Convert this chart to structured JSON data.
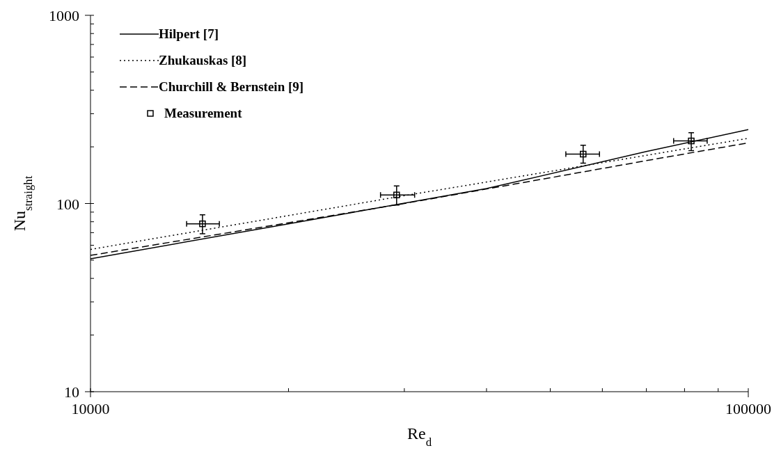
{
  "chart_data": {
    "type": "line",
    "xlabel": "Re$_{d}$",
    "ylabel": "Nu$_{straight}$",
    "log": "xy",
    "legend": "top left",
    "xlim": [
      10000,
      100000
    ],
    "ylim": [
      10,
      1000
    ],
    "xticks": [
      10000,
      {
        "value": 20000,
        "label": null
      },
      {
        "value": 30000,
        "label": null
      },
      {
        "value": 40000,
        "label": null
      },
      {
        "value": 50000,
        "label": null
      },
      {
        "value": 60000,
        "label": null
      },
      {
        "value": 70000,
        "label": null
      },
      {
        "value": 80000,
        "label": null
      },
      {
        "value": 90000,
        "label": null
      },
      100000
    ],
    "yticks": [
      10,
      {
        "value": 20,
        "label": null
      },
      {
        "value": 30,
        "label": null
      },
      {
        "value": 40,
        "label": null
      },
      {
        "value": 50,
        "label": null
      },
      {
        "value": 60,
        "label": null
      },
      {
        "value": 70,
        "label": null
      },
      {
        "value": 80,
        "label": null
      },
      {
        "value": 90,
        "label": null
      },
      100,
      {
        "value": 200,
        "label": null
      },
      {
        "value": 300,
        "label": null
      },
      {
        "value": 400,
        "label": null
      },
      {
        "value": 500,
        "label": null
      },
      {
        "value": 600,
        "label": null
      },
      {
        "value": 700,
        "label": null
      },
      {
        "value": 800,
        "label": null
      },
      {
        "value": 900,
        "label": null
      },
      1000
    ],
    "series": [
      {
        "name": "Hilpert [7]",
        "line_style": "solid",
        "color": "#000000",
        "x": [
          10000,
          20000,
          40000,
          70000,
          100000
        ],
        "values": [
          50.8,
          78,
          120,
          189,
          247
        ]
      },
      {
        "name": "Zhukauskas [8]",
        "line_style": "dotted",
        "color": "#000000",
        "x": [
          10000,
          30000,
          100000
        ],
        "values": [
          57,
          110,
          222
        ]
      },
      {
        "name": "Churchill & Bernstein [9]",
        "line_style": "dashed",
        "color": "#000000",
        "x": [
          10000,
          20000,
          30000,
          50000,
          70000,
          100000
        ],
        "values": [
          53,
          79,
          100,
          137,
          169,
          210
        ]
      },
      {
        "name": "Measurement",
        "type": "scatter",
        "marker": "square",
        "color": "#000000",
        "x": [
          14800,
          29200,
          56100,
          81900
        ],
        "values": [
          78,
          111,
          183,
          215
        ],
        "errors": [
          [
            69,
            87
          ],
          [
            98,
            124
          ],
          [
            164,
            204
          ],
          [
            191,
            238
          ]
        ],
        "xerrors": [
          [
            14000,
            15700
          ],
          [
            27600,
            31100
          ],
          [
            52800,
            59400
          ],
          [
            77000,
            86600
          ]
        ]
      }
    ]
  }
}
